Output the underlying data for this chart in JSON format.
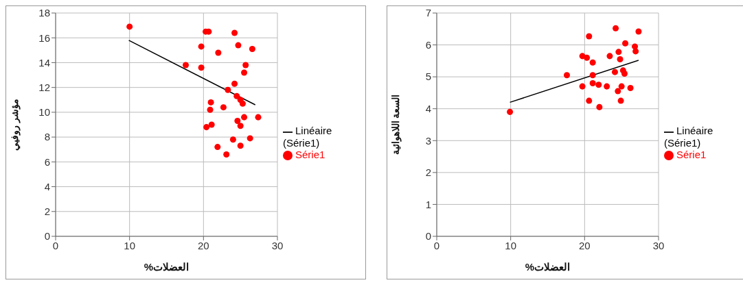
{
  "chart_data": [
    {
      "type": "scatter",
      "xlabel": "%العضلات",
      "ylabel": "مؤشر روفيي",
      "xlim": [
        0,
        30
      ],
      "xticks": [
        0,
        10,
        20,
        30
      ],
      "ylim": [
        0,
        18
      ],
      "yticks": [
        0,
        2,
        4,
        6,
        8,
        10,
        12,
        14,
        16,
        18
      ],
      "grid": true,
      "legend": "right",
      "series": [
        {
          "name": "Série1",
          "marker": "circle",
          "color": "#ff0000",
          "x": [
            10,
            20.3,
            20.7,
            24.2,
            19.7,
            24.7,
            26.6,
            22,
            17.6,
            19.7,
            25.7,
            25.5,
            24.2,
            23.3,
            24.5,
            25,
            25.3,
            21,
            20.9,
            22.7,
            25.5,
            24.6,
            25,
            27.4,
            20.4,
            21.1,
            24,
            26.3,
            21.9,
            25,
            23.1
          ],
          "values": [
            16.9,
            16.5,
            16.5,
            16.4,
            15.3,
            15.4,
            15.1,
            14.8,
            13.8,
            13.6,
            13.8,
            13.2,
            12.3,
            11.8,
            11.3,
            11,
            10.7,
            10.8,
            10.2,
            10.4,
            9.6,
            9.3,
            8.9,
            9.6,
            8.8,
            9,
            7.8,
            7.9,
            7.2,
            7.3,
            6.6
          ]
        },
        {
          "name": "Linéaire (Série1)",
          "type": "line",
          "color": "#000000",
          "x": [
            9.9,
            27
          ],
          "values": [
            15.8,
            10.6
          ]
        }
      ]
    },
    {
      "type": "scatter",
      "xlabel": "%العضلات",
      "ylabel": "السعة اللاهوائية",
      "xlim": [
        0,
        30
      ],
      "xticks": [
        0,
        10,
        20,
        30
      ],
      "ylim": [
        0,
        7
      ],
      "yticks": [
        0,
        1,
        2,
        3,
        4,
        5,
        6,
        7
      ],
      "grid": true,
      "legend": "right",
      "series": [
        {
          "name": "Série1",
          "marker": "circle",
          "color": "#ff0000",
          "x": [
            9.9,
            17.6,
            19.7,
            20.3,
            20.6,
            21.1,
            19.7,
            21.1,
            21.1,
            21.9,
            22,
            20.6,
            23,
            23.4,
            24.2,
            24.1,
            24.6,
            24.8,
            25.2,
            25.4,
            25.5,
            26.8,
            26.9,
            27.3,
            24.5,
            25,
            24.9,
            26.2
          ],
          "values": [
            3.9,
            5.05,
            5.65,
            5.6,
            6.27,
            5.45,
            4.7,
            4.8,
            5.05,
            4.75,
            4.05,
            4.25,
            4.7,
            5.65,
            6.52,
            5.15,
            5.78,
            5.55,
            5.2,
            5.1,
            6.05,
            5.95,
            5.8,
            6.42,
            4.55,
            4.7,
            4.25,
            4.65
          ]
        },
        {
          "name": "Linéaire (Série1)",
          "type": "line",
          "color": "#000000",
          "x": [
            9.9,
            27.3
          ],
          "values": [
            4.2,
            5.52
          ]
        }
      ]
    }
  ]
}
